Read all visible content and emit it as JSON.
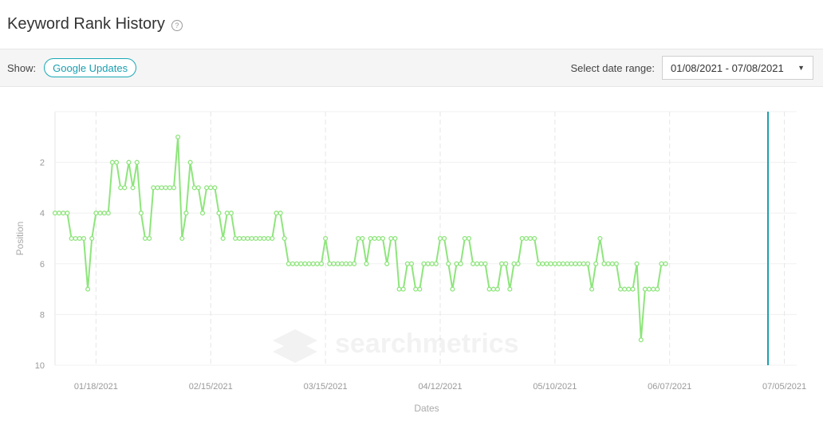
{
  "header": {
    "title": "Keyword Rank History",
    "help_icon": "question-circle-icon"
  },
  "toolbar": {
    "show_label": "Show:",
    "updates_button": "Google Updates",
    "range_label": "Select date range:",
    "range_value": "01/08/2021 - 07/08/2021",
    "caret_icon": "caret-down-icon"
  },
  "colors": {
    "line": "#8ee57c",
    "marker": "#1a9fb0",
    "accent": "#18a9b5"
  },
  "watermark": "searchmetrics",
  "chart_data": {
    "type": "line",
    "xlabel": "Dates",
    "ylabel": "Position",
    "ylim": [
      10,
      0
    ],
    "y_inverted": true,
    "y_ticks": [
      "2",
      "4",
      "6",
      "8",
      "10"
    ],
    "x_range": [
      "2021-01-08",
      "2021-07-08"
    ],
    "x_ticks": [
      {
        "date": "2021-01-18",
        "label": "01/18/2021"
      },
      {
        "date": "2021-02-15",
        "label": "02/15/2021"
      },
      {
        "date": "2021-03-15",
        "label": "03/15/2021"
      },
      {
        "date": "2021-04-12",
        "label": "04/12/2021"
      },
      {
        "date": "2021-05-10",
        "label": "05/10/2021"
      },
      {
        "date": "2021-06-07",
        "label": "06/07/2021"
      },
      {
        "date": "2021-07-05",
        "label": "07/05/2021"
      }
    ],
    "marker_date": "2021-07-01",
    "series": [
      {
        "start_date": "2021-01-08",
        "values": [
          4,
          4,
          4,
          4,
          5,
          5,
          5,
          5,
          7,
          5,
          4,
          4,
          4,
          4,
          2,
          2,
          3,
          3,
          2,
          3,
          2,
          4,
          5,
          5,
          3,
          3,
          3,
          3,
          3,
          3,
          1,
          5,
          4,
          2,
          3,
          3,
          4,
          3,
          3,
          3,
          4,
          5,
          4,
          4,
          5,
          5,
          5,
          5,
          5,
          5,
          5,
          5,
          5,
          5,
          4,
          4,
          5,
          6,
          6,
          6,
          6,
          6,
          6,
          6,
          6,
          6,
          5,
          6,
          6,
          6,
          6,
          6,
          6,
          6,
          5,
          5,
          6,
          5,
          5,
          5,
          5,
          6,
          5,
          5,
          7,
          7,
          6,
          6,
          7,
          7,
          6,
          6,
          6,
          6,
          5,
          5,
          6,
          7,
          6,
          6,
          5,
          5,
          6,
          6,
          6,
          6,
          7,
          7,
          7,
          6,
          6,
          7,
          6,
          6,
          5,
          5,
          5,
          5,
          6,
          6,
          6,
          6,
          6,
          6,
          6,
          6,
          6,
          6,
          6,
          6,
          6,
          7,
          6,
          5,
          6,
          6,
          6,
          6,
          7,
          7,
          7,
          7,
          6,
          9,
          7,
          7,
          7,
          7,
          6,
          6
        ]
      }
    ]
  }
}
